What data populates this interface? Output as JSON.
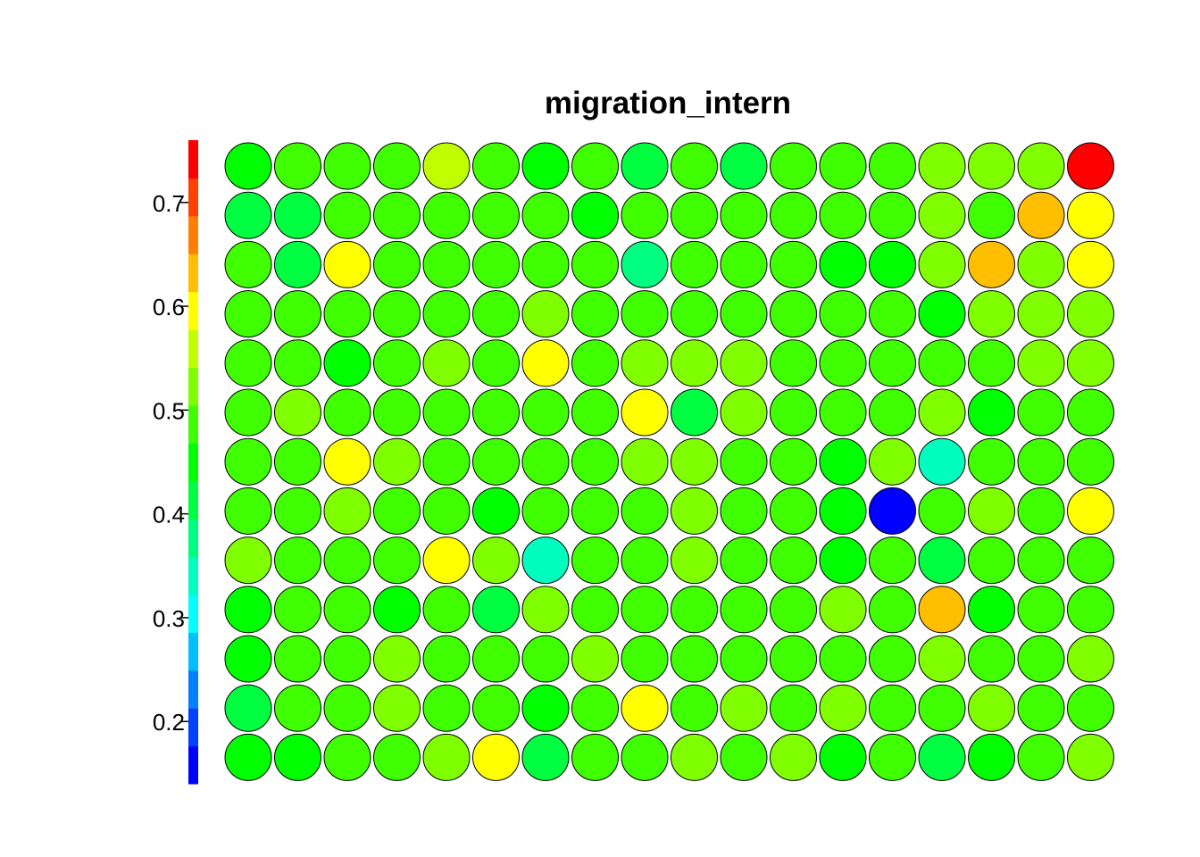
{
  "chart_data": {
    "type": "heatmap",
    "title": "migration_intern",
    "xlabel": "",
    "ylabel": "",
    "colorbar": {
      "range": [
        0.14,
        0.76
      ],
      "ticks": [
        0.2,
        0.3,
        0.4,
        0.5,
        0.6,
        0.7
      ],
      "tick_labels": [
        "0.2",
        "0.3",
        "0.4",
        "0.5",
        "0.6",
        "0.7"
      ],
      "palette": [
        "#0000ff",
        "#0040ff",
        "#0080ff",
        "#00bfff",
        "#00ffff",
        "#00ffbf",
        "#00ff80",
        "#00ff40",
        "#00ff00",
        "#40ff00",
        "#80ff00",
        "#bfff00",
        "#ffff00",
        "#ffbf00",
        "#ff8000",
        "#ff4000",
        "#ff0000"
      ]
    },
    "grid": {
      "rows": 13,
      "cols": 18
    },
    "values": [
      [
        0.44,
        0.48,
        0.48,
        0.47,
        0.55,
        0.47,
        0.44,
        0.47,
        0.43,
        0.48,
        0.43,
        0.47,
        0.48,
        0.48,
        0.51,
        0.54,
        0.54,
        0.76
      ],
      [
        0.43,
        0.43,
        0.47,
        0.47,
        0.47,
        0.48,
        0.47,
        0.44,
        0.48,
        0.47,
        0.47,
        0.47,
        0.48,
        0.48,
        0.52,
        0.47,
        0.65,
        0.58
      ],
      [
        0.47,
        0.43,
        0.58,
        0.47,
        0.48,
        0.47,
        0.47,
        0.47,
        0.37,
        0.47,
        0.48,
        0.47,
        0.44,
        0.45,
        0.54,
        0.65,
        0.54,
        0.61
      ],
      [
        0.48,
        0.47,
        0.47,
        0.47,
        0.47,
        0.48,
        0.51,
        0.47,
        0.48,
        0.48,
        0.47,
        0.47,
        0.48,
        0.48,
        0.44,
        0.54,
        0.54,
        0.54
      ],
      [
        0.48,
        0.48,
        0.44,
        0.48,
        0.54,
        0.48,
        0.61,
        0.47,
        0.51,
        0.51,
        0.54,
        0.47,
        0.47,
        0.48,
        0.47,
        0.47,
        0.54,
        0.51
      ],
      [
        0.48,
        0.54,
        0.48,
        0.48,
        0.48,
        0.47,
        0.47,
        0.48,
        0.61,
        0.43,
        0.51,
        0.47,
        0.48,
        0.48,
        0.51,
        0.44,
        0.47,
        0.47
      ],
      [
        0.48,
        0.48,
        0.61,
        0.51,
        0.47,
        0.47,
        0.48,
        0.48,
        0.51,
        0.51,
        0.48,
        0.47,
        0.44,
        0.54,
        0.34,
        0.47,
        0.47,
        0.47
      ],
      [
        0.48,
        0.48,
        0.51,
        0.47,
        0.47,
        0.44,
        0.47,
        0.47,
        0.48,
        0.51,
        0.48,
        0.48,
        0.44,
        0.14,
        0.47,
        0.51,
        0.47,
        0.61
      ],
      [
        0.51,
        0.48,
        0.47,
        0.48,
        0.58,
        0.51,
        0.34,
        0.47,
        0.48,
        0.51,
        0.48,
        0.48,
        0.44,
        0.47,
        0.43,
        0.48,
        0.48,
        0.47
      ],
      [
        0.44,
        0.48,
        0.48,
        0.44,
        0.48,
        0.41,
        0.51,
        0.48,
        0.47,
        0.48,
        0.48,
        0.47,
        0.51,
        0.48,
        0.65,
        0.44,
        0.47,
        0.47
      ],
      [
        0.44,
        0.47,
        0.47,
        0.51,
        0.47,
        0.47,
        0.48,
        0.51,
        0.47,
        0.47,
        0.48,
        0.47,
        0.47,
        0.48,
        0.51,
        0.48,
        0.47,
        0.51
      ],
      [
        0.41,
        0.48,
        0.48,
        0.51,
        0.48,
        0.48,
        0.44,
        0.48,
        0.58,
        0.47,
        0.51,
        0.47,
        0.54,
        0.48,
        0.48,
        0.54,
        0.47,
        0.48
      ],
      [
        0.44,
        0.44,
        0.47,
        0.48,
        0.51,
        0.58,
        0.41,
        0.47,
        0.48,
        0.51,
        0.48,
        0.51,
        0.44,
        0.47,
        0.41,
        0.44,
        0.47,
        0.51
      ]
    ]
  }
}
